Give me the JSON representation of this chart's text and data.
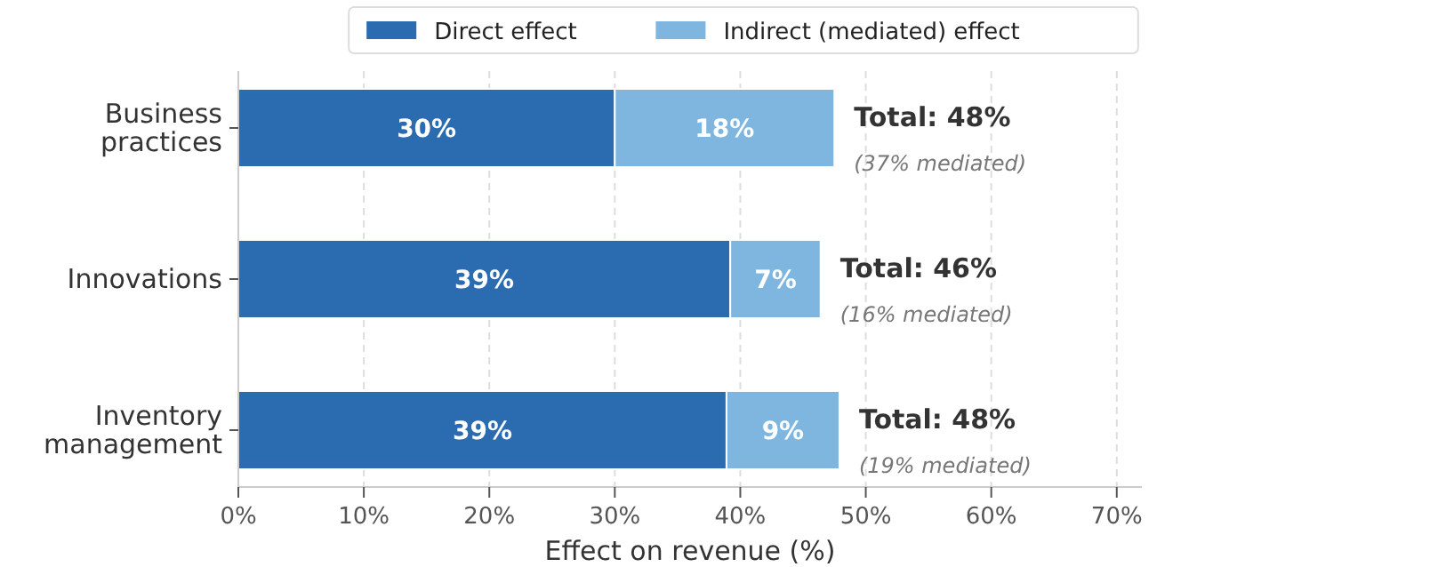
{
  "chart_data": {
    "type": "bar",
    "orientation": "horizontal",
    "stacked": true,
    "categories": [
      "Business\npractices",
      "Innovations",
      "Inventory\nmanagement"
    ],
    "series": [
      {
        "name": "Direct effect",
        "color": "#2b6cb0",
        "values": [
          30,
          39.2,
          38.9
        ],
        "value_labels": [
          "30%",
          "39%",
          "39%"
        ]
      },
      {
        "name": "Indirect (mediated) effect",
        "color": "#7fb6e0",
        "values": [
          17.5,
          7.2,
          9
        ],
        "value_labels": [
          "18%",
          "7%",
          "9%"
        ]
      }
    ],
    "xlabel": "Effect on revenue (%)",
    "xlim": [
      0,
      72
    ],
    "xticks": [
      {
        "value": 0,
        "label": "0%"
      },
      {
        "value": 10,
        "label": "10%"
      },
      {
        "value": 20,
        "label": "20%"
      },
      {
        "value": 30,
        "label": "30%"
      },
      {
        "value": 40,
        "label": "40%"
      },
      {
        "value": 50,
        "label": "50%"
      },
      {
        "value": 60,
        "label": "60%"
      },
      {
        "value": 70,
        "label": "70%"
      }
    ],
    "grid": "x",
    "legend": "top",
    "annotations": [
      "Total: 48%",
      "(37% mediated)",
      "Total: 46%",
      "(16% mediated)",
      "Total: 48%",
      "(19% mediated)"
    ]
  }
}
